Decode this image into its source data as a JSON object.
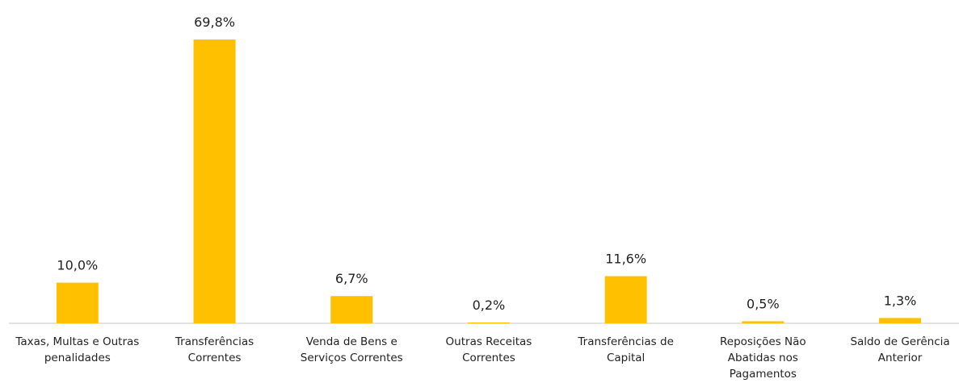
{
  "chart_data": {
    "type": "bar",
    "categories": [
      "Taxas, Multas e Outras penalidades",
      "Transferências Correntes",
      "Venda de Bens e Serviços Correntes",
      "Outras Receitas Correntes",
      "Transferências de Capital",
      "Reposições Não Abatidas nos Pagamentos",
      "Saldo de Gerência Anterior"
    ],
    "values": [
      10.0,
      69.8,
      6.7,
      0.2,
      11.6,
      0.5,
      1.3
    ],
    "value_labels": [
      "10,0%",
      "69,8%",
      "6,7%",
      "0,2%",
      "11,6%",
      "0,5%",
      "1,3%"
    ],
    "color": "#ffc000",
    "ylim": [
      0,
      70
    ]
  }
}
